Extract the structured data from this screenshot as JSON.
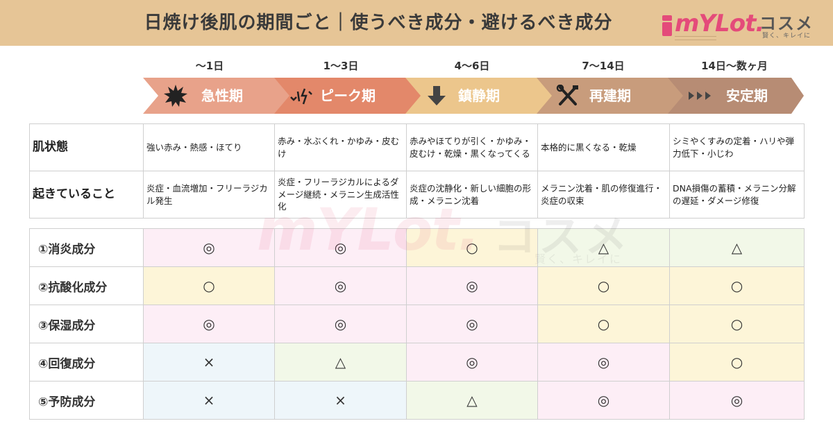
{
  "header": {
    "title": "日焼け後肌の期間ごと｜使うべき成分・避けるべき成分",
    "logo_text": "mYLot.",
    "logo_sub": "コスメ",
    "logo_tagline": "賢く、キレイに",
    "brand_color": "#e44b7a",
    "background": "#e6c596"
  },
  "days": [
    "〜1日",
    "1〜3日",
    "4〜6日",
    "7〜14日",
    "14日〜数ヶ月"
  ],
  "phases": [
    {
      "label": "急性期",
      "icon": "burst-icon",
      "color": "#e8a28a"
    },
    {
      "label": "ピーク期",
      "icon": "lightning-icon",
      "color": "#e3886a"
    },
    {
      "label": "鎮静期",
      "icon": "arrow-down-icon",
      "color": "#ecc68c"
    },
    {
      "label": "再建期",
      "icon": "tools-icon",
      "color": "#c89c7c"
    },
    {
      "label": "安定期",
      "icon": "triple-arrow-icon",
      "color": "#b78c74"
    }
  ],
  "skin_table": {
    "rows": [
      {
        "header": "肌状態",
        "cells": [
          "強い赤み・熱感・ほてり",
          "赤み・水ぶくれ・かゆみ・皮むけ",
          "赤みやほてりが引く・かゆみ・皮むけ・乾燥・黒くなってくる",
          "本格的に黒くなる・乾燥",
          "シミやくすみの定着・ハリや弾力低下・小じわ"
        ]
      },
      {
        "header": "起きていること",
        "cells": [
          "炎症・血流増加・フリーラジカル発生",
          "炎症・フリーラジカルによるダメージ継続・メラニン生成活性化",
          "炎症の沈静化・新しい細胞の形成・メラニン沈着",
          "メラニン沈着・肌の修復進行・炎症の収束",
          "DNA損傷の蓄積・メラニン分解の遅延・ダメージ修復"
        ]
      }
    ]
  },
  "ingredient_table": {
    "rows": [
      {
        "header": "①消炎成分",
        "cells": [
          "◎",
          "◎",
          "○",
          "△",
          "△"
        ],
        "colors": [
          "pink",
          "pink",
          "yellow",
          "green",
          "green"
        ]
      },
      {
        "header": "②抗酸化成分",
        "cells": [
          "○",
          "◎",
          "◎",
          "○",
          "○"
        ],
        "colors": [
          "yellow",
          "pink",
          "pink",
          "yellow",
          "yellow"
        ]
      },
      {
        "header": "③保湿成分",
        "cells": [
          "◎",
          "◎",
          "◎",
          "○",
          "○"
        ],
        "colors": [
          "pink",
          "pink",
          "pink",
          "yellow",
          "yellow"
        ]
      },
      {
        "header": "④回復成分",
        "cells": [
          "×",
          "△",
          "◎",
          "◎",
          "○"
        ],
        "colors": [
          "blue",
          "green",
          "pink",
          "pink",
          "yellow"
        ]
      },
      {
        "header": "⑤予防成分",
        "cells": [
          "×",
          "×",
          "△",
          "◎",
          "◎"
        ],
        "colors": [
          "blue",
          "blue",
          "green",
          "pink",
          "pink"
        ]
      }
    ]
  }
}
